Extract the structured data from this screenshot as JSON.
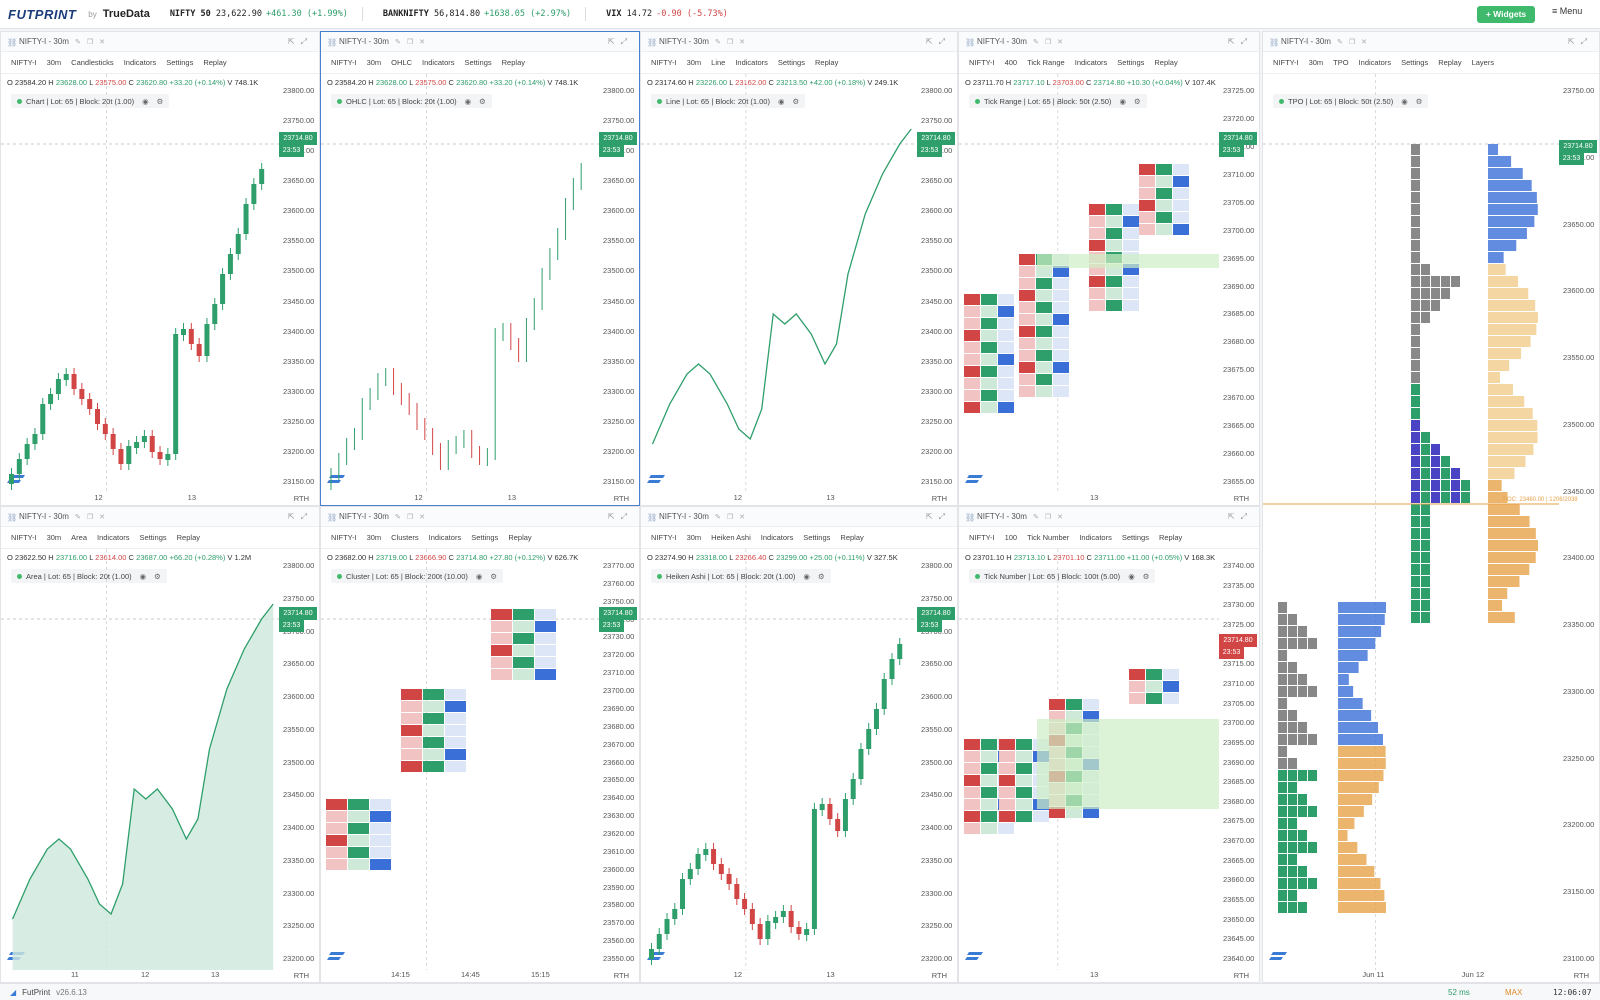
{
  "topbar": {
    "logo": "FUTPRINT",
    "by": "by",
    "brand": "TrueData",
    "tickers": [
      {
        "name": "NIFTY 50",
        "price": "23,622.90",
        "chg": "+461.30 (+1.99%)",
        "dir": "up"
      },
      {
        "name": "BANKNIFTY",
        "price": "56,814.80",
        "chg": "+1638.05 (+2.97%)",
        "dir": "up"
      },
      {
        "name": "VIX",
        "price": "14.72",
        "chg": "-0.90 (-5.73%)",
        "dir": "dn"
      }
    ],
    "widgets": "+ Widgets",
    "menu": "≡  Menu"
  },
  "status": {
    "app": "FutPrint",
    "version": "v26.6.13",
    "latency": "52 ms",
    "max": "MAX",
    "clock": "12:06:07"
  },
  "panels": [
    {
      "title": "NIFTY-I - 30m",
      "tf": "30m",
      "type": "Candlesticks",
      "ohlc": {
        "o": "23584.20",
        "h": "23628.00",
        "l": "23575.00",
        "c": "23620.80",
        "chg": "+33.20 (+0.14%)",
        "v": "748.1K"
      },
      "legend": "Chart | Lot: 65 | Block: 20t (1.00)",
      "yticks": [
        "23800.00",
        "23750.00",
        "23700.00",
        "23650.00",
        "23600.00",
        "23550.00",
        "23500.00",
        "23450.00",
        "23400.00",
        "23350.00",
        "23300.00",
        "23250.00",
        "23200.00",
        "23150.00"
      ],
      "xticks": [
        "12",
        "13"
      ],
      "tag": "23714.80",
      "tagt": "23:53"
    },
    {
      "title": "NIFTY-I - 30m",
      "tf": "30m",
      "type": "OHLC",
      "ohlc": {
        "o": "23584.20",
        "h": "23628.00",
        "l": "23575.00",
        "c": "23620.80",
        "chg": "+33.20 (+0.14%)",
        "v": "748.1K"
      },
      "legend": "OHLC | Lot: 65 | Block: 20t (1.00)",
      "yticks": [
        "23800.00",
        "23750.00",
        "23700.00",
        "23650.00",
        "23600.00",
        "23550.00",
        "23500.00",
        "23450.00",
        "23400.00",
        "23350.00",
        "23300.00",
        "23250.00",
        "23200.00",
        "23150.00"
      ],
      "xticks": [
        "12",
        "13"
      ],
      "tag": "23714.80",
      "tagt": "23:53"
    },
    {
      "title": "NIFTY-I - 30m",
      "tf": "30m",
      "type": "Line",
      "ohlc": {
        "o": "23174.60",
        "h": "23226.00",
        "l": "23162.00",
        "c": "23213.50",
        "chg": "+42.00 (+0.18%)",
        "v": "249.1K"
      },
      "legend": "Line | Lot: 65 | Block: 20t (1.00)",
      "yticks": [
        "23800.00",
        "23750.00",
        "23700.00",
        "23650.00",
        "23600.00",
        "23550.00",
        "23500.00",
        "23450.00",
        "23400.00",
        "23350.00",
        "23300.00",
        "23250.00",
        "23200.00",
        "23150.00"
      ],
      "xticks": [
        "12",
        "13"
      ],
      "tag": "23714.80",
      "tagt": "23:53"
    },
    {
      "title": "NIFTY-I - 30m",
      "tf": "400",
      "type": "Tick Range",
      "ohlc": {
        "o": "23711.70",
        "h": "23717.10",
        "l": "23703.00",
        "c": "23714.80",
        "chg": "+10.30 (+0.04%)",
        "v": "107.4K"
      },
      "legend": "Tick Range | Lot: 65 | Block: 50t (2.50)",
      "yticks": [
        "23725.00",
        "23720.00",
        "23715.00",
        "23710.00",
        "23705.00",
        "23700.00",
        "23695.00",
        "23690.00",
        "23685.00",
        "23680.00",
        "23675.00",
        "23670.00",
        "23665.00",
        "23660.00",
        "23655.00"
      ],
      "xticks": [
        "13"
      ],
      "tag": "23714.80",
      "tagt": "23:53"
    },
    {
      "title": "NIFTY-I - 30m",
      "tf": "30m",
      "type": "TPO",
      "legend": "TPO | Lot: 65 | Block: 50t (2.50)",
      "yticks": [
        "23750.00",
        "23700.00",
        "23650.00",
        "23600.00",
        "23550.00",
        "23500.00",
        "23450.00",
        "23400.00",
        "23350.00",
        "23300.00",
        "23250.00",
        "23200.00",
        "23150.00",
        "23100.00"
      ],
      "xticks": [
        "Jun 11",
        "Jun 12"
      ],
      "tag": "23714.80",
      "tagt": "23:53",
      "layers": "Layers",
      "poc": "POC: 23460.00 | 1206/2038"
    },
    {
      "title": "NIFTY-I - 30m",
      "tf": "30m",
      "type": "Area",
      "ohlc": {
        "o": "23622.50",
        "h": "23716.00",
        "l": "23614.00",
        "c": "23687.00",
        "chg": "+66.20 (+0.28%)",
        "v": "1.2M"
      },
      "legend": "Area | Lot: 65 | Block: 20t (1.00)",
      "yticks": [
        "23800.00",
        "23750.00",
        "23700.00",
        "23650.00",
        "23600.00",
        "23550.00",
        "23500.00",
        "23450.00",
        "23400.00",
        "23350.00",
        "23300.00",
        "23250.00",
        "23200.00"
      ],
      "xticks": [
        "11",
        "12",
        "13"
      ],
      "tag": "23714.80",
      "tagt": "23:53"
    },
    {
      "title": "NIFTY-I - 30m",
      "tf": "30m",
      "type": "Clusters",
      "ohlc": {
        "o": "23682.00",
        "h": "23719.00",
        "l": "23666.90",
        "c": "23714.80",
        "chg": "+27.80 (+0.12%)",
        "v": "626.7K"
      },
      "legend": "Cluster | Lot: 65 | Block: 200t (10.00)",
      "yticks": [
        "23770.00",
        "23760.00",
        "23750.00",
        "23740.00",
        "23730.00",
        "23720.00",
        "23710.00",
        "23700.00",
        "23690.00",
        "23680.00",
        "23670.00",
        "23660.00",
        "23650.00",
        "23640.00",
        "23630.00",
        "23620.00",
        "23610.00",
        "23600.00",
        "23590.00",
        "23580.00",
        "23570.00",
        "23560.00",
        "23550.00"
      ],
      "xticks": [
        "14:15",
        "14:45",
        "15:15"
      ],
      "tag": "23714.80",
      "tagt": "23:53"
    },
    {
      "title": "NIFTY-I - 30m",
      "tf": "30m",
      "type": "Heiken Ashi",
      "ohlc": {
        "o": "23274.90",
        "h": "23318.00",
        "l": "23266.40",
        "c": "23299.00",
        "chg": "+25.00 (+0.11%)",
        "v": "327.5K"
      },
      "legend": "Heiken Ashi | Lot: 65 | Block: 20t (1.00)",
      "yticks": [
        "23800.00",
        "23750.00",
        "23700.00",
        "23650.00",
        "23600.00",
        "23550.00",
        "23500.00",
        "23450.00",
        "23400.00",
        "23350.00",
        "23300.00",
        "23250.00",
        "23200.00"
      ],
      "xticks": [
        "12",
        "13"
      ],
      "tag": "23714.80",
      "tagt": "23:53"
    },
    {
      "title": "NIFTY-I - 30m",
      "tf": "100",
      "type": "Tick Number",
      "ohlc": {
        "o": "23701.10",
        "h": "23713.10",
        "l": "23701.10",
        "c": "23711.00",
        "chg": "+11.00 (+0.05%)",
        "v": "168.3K"
      },
      "legend": "Tick Number | Lot: 65 | Block: 100t (5.00)",
      "yticks": [
        "23740.00",
        "23735.00",
        "23730.00",
        "23725.00",
        "23720.00",
        "23715.00",
        "23710.00",
        "23705.00",
        "23700.00",
        "23695.00",
        "23690.00",
        "23685.00",
        "23680.00",
        "23675.00",
        "23670.00",
        "23665.00",
        "23660.00",
        "23655.00",
        "23650.00",
        "23645.00",
        "23640.00"
      ],
      "xticks": [
        "13"
      ],
      "tag": "23714.80",
      "tagt": "23:53"
    }
  ],
  "toolbar": {
    "symbol": "NIFTY-I",
    "indicators": "Indicators",
    "settings": "Settings",
    "replay": "Replay"
  },
  "colors": {
    "green": "#2e9e6a",
    "red": "#d24545",
    "blue": "#3a6fd8",
    "orange": "#e7a24a"
  }
}
